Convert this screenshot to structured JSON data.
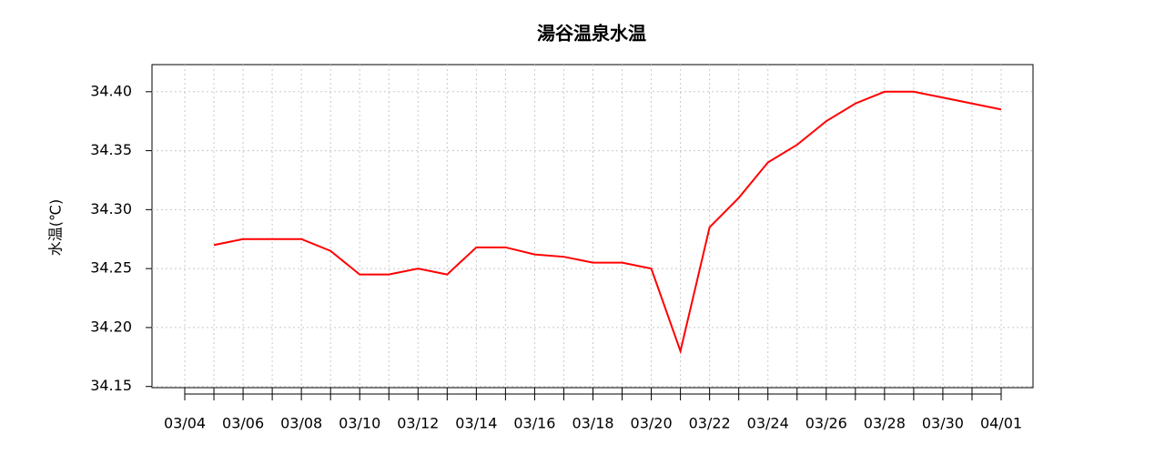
{
  "chart_data": {
    "type": "line",
    "title": "湯谷温泉水温",
    "y_label": "水温(℃)",
    "categories": [
      "03/04",
      null,
      "03/06",
      null,
      "03/08",
      null,
      "03/10",
      null,
      "03/12",
      null,
      "03/14",
      null,
      "03/16",
      null,
      "03/18",
      null,
      "03/20",
      null,
      "03/22",
      null,
      "03/24",
      null,
      "03/26",
      null,
      "03/28",
      null,
      "03/30",
      null,
      "04/01"
    ],
    "series": [
      {
        "name": "水温",
        "color": "#ff0000",
        "values": [
          null,
          34.27,
          34.275,
          34.275,
          34.275,
          34.265,
          34.245,
          34.245,
          34.25,
          34.245,
          34.268,
          34.268,
          34.262,
          34.26,
          34.255,
          34.255,
          34.25,
          34.18,
          34.285,
          34.31,
          34.34,
          34.355,
          34.375,
          34.39,
          34.4,
          34.4,
          34.395,
          34.39,
          34.385
        ]
      }
    ],
    "ylim": [
      34.149,
      34.423
    ],
    "yticks": [
      34.15,
      {
        "value": 34.2,
        "label": "34.20"
      },
      34.25,
      {
        "value": 34.3,
        "label": "34.30"
      },
      34.35,
      {
        "value": 34.4,
        "label": "34.40"
      }
    ],
    "grid": true
  }
}
